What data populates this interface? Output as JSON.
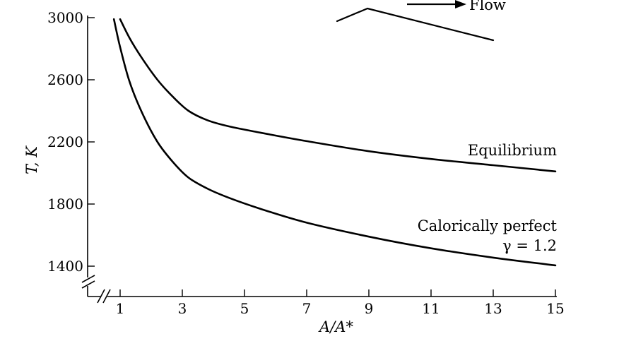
{
  "chart_data": {
    "type": "line",
    "ylabel": "T, K",
    "xlabel": "A/A*",
    "x_ticks": [
      1,
      3,
      5,
      7,
      9,
      11,
      13,
      15
    ],
    "y_ticks": [
      1400,
      1800,
      2200,
      2600,
      3000
    ],
    "xlim": [
      1,
      15
    ],
    "ylim": [
      1400,
      3000
    ],
    "series": [
      {
        "name": "Equilibrium",
        "points": [
          [
            1.0,
            2990
          ],
          [
            1.3,
            2870
          ],
          [
            1.7,
            2740
          ],
          [
            2.2,
            2600
          ],
          [
            2.7,
            2490
          ],
          [
            3.2,
            2400
          ],
          [
            3.8,
            2340
          ],
          [
            4.5,
            2300
          ],
          [
            5.5,
            2260
          ],
          [
            7,
            2205
          ],
          [
            9,
            2140
          ],
          [
            11,
            2090
          ],
          [
            13,
            2050
          ],
          [
            15,
            2010
          ]
        ]
      },
      {
        "name": "Calorically perfect",
        "annotation_line2": "γ = 1.2",
        "points": [
          [
            0.8,
            2990
          ],
          [
            1.0,
            2810
          ],
          [
            1.3,
            2590
          ],
          [
            1.7,
            2390
          ],
          [
            2.2,
            2200
          ],
          [
            2.7,
            2070
          ],
          [
            3.2,
            1970
          ],
          [
            3.8,
            1900
          ],
          [
            4.5,
            1840
          ],
          [
            5.5,
            1770
          ],
          [
            7,
            1680
          ],
          [
            9,
            1590
          ],
          [
            11,
            1515
          ],
          [
            13,
            1455
          ],
          [
            15,
            1405
          ]
        ]
      }
    ],
    "axis_break": true,
    "inset": {
      "label": "Flow",
      "arrow": true
    }
  }
}
